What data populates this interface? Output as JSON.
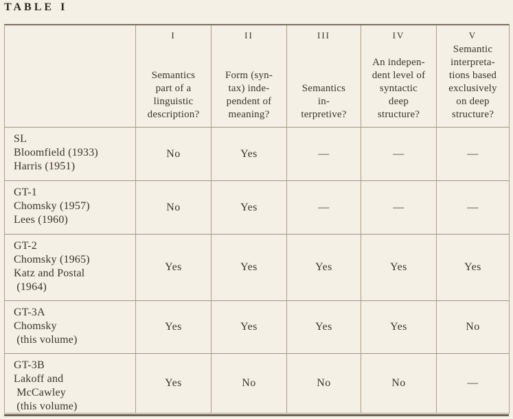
{
  "page": {
    "title_word": "TABLE",
    "title_numeral": "I",
    "background_color": "#f4f0e5",
    "line_color": "#a89f8d",
    "text_color": "#3a352b"
  },
  "table": {
    "columns": [
      {
        "numeral": "I",
        "header_lines": [
          "Semantics",
          "part of a",
          "linguistic",
          "description?"
        ]
      },
      {
        "numeral": "II",
        "header_lines": [
          "Form (syn-",
          "tax) inde-",
          "pendent of",
          "meaning?"
        ]
      },
      {
        "numeral": "III",
        "header_lines": [
          "Semantics",
          "in-",
          "terpretive?"
        ]
      },
      {
        "numeral": "IV",
        "header_lines": [
          "An indepen-",
          "dent level of",
          "syntactic",
          "deep",
          "structure?"
        ]
      },
      {
        "numeral": "V",
        "header_lines": [
          "Semantic",
          "interpreta-",
          "tions based",
          "exclusively",
          "on deep",
          "structure?"
        ]
      }
    ],
    "rows": [
      {
        "label_lines": [
          "SL",
          "Bloomfield (1933)",
          "Harris (1951)"
        ],
        "values": [
          "No",
          "Yes",
          "—",
          "—",
          "—"
        ]
      },
      {
        "label_lines": [
          "GT-1",
          "Chomsky (1957)",
          "Lees (1960)"
        ],
        "values": [
          "No",
          "Yes",
          "—",
          "—",
          "—"
        ]
      },
      {
        "label_lines": [
          "GT-2",
          "Chomsky (1965)",
          "Katz and Postal",
          " (1964)"
        ],
        "values": [
          "Yes",
          "Yes",
          "Yes",
          "Yes",
          "Yes"
        ]
      },
      {
        "label_lines": [
          "GT-3A",
          "Chomsky",
          " (this volume)"
        ],
        "values": [
          "Yes",
          "Yes",
          "Yes",
          "Yes",
          "No"
        ]
      },
      {
        "label_lines": [
          "GT-3B",
          "Lakoff and",
          " McCawley",
          " (this volume)"
        ],
        "values": [
          "Yes",
          "No",
          "No",
          "No",
          "—"
        ]
      }
    ]
  }
}
